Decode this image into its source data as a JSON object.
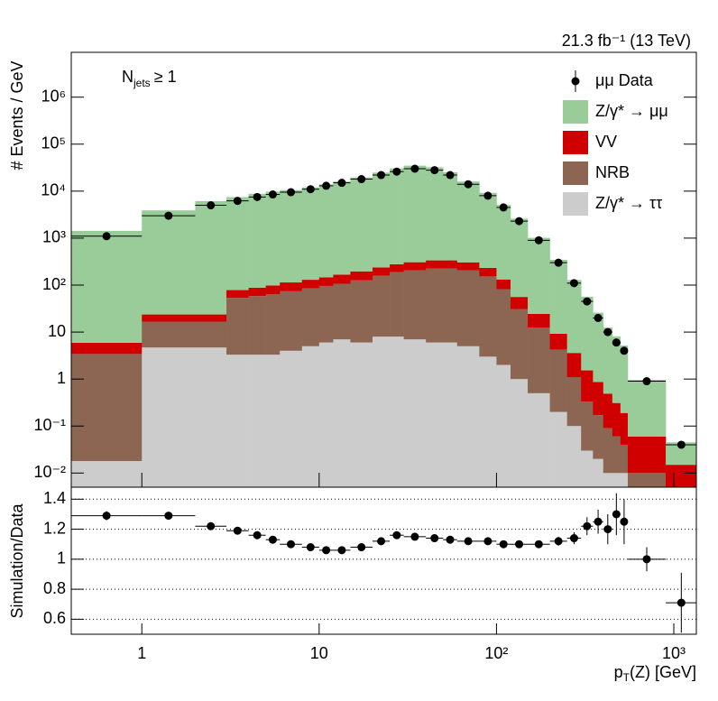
{
  "chart_data": {
    "type": "stacked_histogram_ratio",
    "lumi": "21.3 fb⁻¹ (13 TeV)",
    "annotation": {
      "main": "N",
      "sub": "jets",
      "rest": "≥ 1"
    },
    "y_label": "# Events / GeV",
    "ratio_label": "Simulation/Data",
    "x_label": {
      "main": "p",
      "sub": "T",
      "rest": "(Z) [GeV]"
    },
    "log_x": true,
    "log_y": true,
    "xlim": [
      0.4,
      1340
    ],
    "xticks": [
      1,
      10,
      {
        "value": 100,
        "label": "10²"
      },
      {
        "value": 1000,
        "label": "10³"
      }
    ],
    "ylim": [
      0.005,
      9000000
    ],
    "yticks": [
      {
        "value": 0.01,
        "label": "10⁻²"
      },
      {
        "value": 0.1,
        "label": "10⁻¹"
      },
      1,
      10,
      {
        "value": 100,
        "label": "10²"
      },
      {
        "value": 1000,
        "label": "10³"
      },
      {
        "value": 10000,
        "label": "10⁴"
      },
      {
        "value": 100000,
        "label": "10⁵"
      },
      {
        "value": 1000000,
        "label": "10⁶"
      }
    ],
    "ratio_ylim": [
      0.5,
      1.48
    ],
    "ratio_yticks": [
      0.6,
      0.8,
      1,
      1.2,
      1.4
    ],
    "ratio_grid": true,
    "legend": "top-right",
    "bins": [
      0.4,
      1,
      2,
      3,
      4,
      5,
      6,
      8,
      10,
      12,
      15,
      20,
      25,
      30,
      40,
      50,
      60,
      80,
      100,
      120,
      150,
      200,
      250,
      300,
      350,
      400,
      450,
      500,
      550,
      900,
      1350
    ],
    "data": {
      "name": "μμ Data",
      "color": "#000000",
      "values": [
        1100,
        3000,
        5000,
        6200,
        7500,
        8500,
        9500,
        11000,
        13000,
        15000,
        18000,
        22000,
        26000,
        30000,
        28000,
        22000,
        14000,
        8000,
        4500,
        2300,
        900,
        300,
        110,
        45,
        20,
        10,
        6,
        4,
        0.9,
        0.04
      ]
    },
    "series": [
      {
        "name": "Z/γ* → μμ",
        "color": "#99cc99",
        "values": [
          1420,
          3870,
          6100,
          7380,
          8700,
          9600,
          10400,
          11900,
          13800,
          15900,
          19400,
          24600,
          30200,
          34500,
          31900,
          24900,
          15700,
          8960,
          4950,
          2530,
          990,
          336,
          125,
          55,
          25,
          12,
          7.8,
          5,
          0.9,
          0.03
        ]
      },
      {
        "name": "VV",
        "color": "#d10000",
        "values": [
          2.5,
          7,
          7,
          25,
          30,
          35,
          40,
          45,
          50,
          60,
          70,
          80,
          90,
          100,
          110,
          110,
          100,
          80,
          50,
          25,
          12,
          5,
          2.5,
          1.2,
          0.7,
          0.4,
          0.25,
          0.15,
          0.05,
          0.01
        ]
      },
      {
        "name": "NRB",
        "color": "#8c6653",
        "values": [
          3.4,
          12,
          12,
          50,
          55,
          60,
          70,
          80,
          90,
          100,
          120,
          150,
          180,
          200,
          220,
          220,
          200,
          150,
          80,
          30,
          12,
          4,
          1,
          0.3,
          0.15,
          0.08,
          0.05,
          0.03,
          0.005,
          0.002
        ]
      },
      {
        "name": "Z/γ* → ττ",
        "color": "#cccccc",
        "values": [
          0.018,
          4.7,
          4.7,
          3.3,
          3.3,
          3.3,
          4,
          5,
          6,
          7,
          6,
          8,
          8,
          7,
          6,
          6,
          5,
          3,
          2,
          1,
          0.5,
          0.2,
          0.1,
          0.03,
          0.02,
          0.01,
          0.01,
          0.01,
          0.005,
          0.003
        ]
      }
    ],
    "ratio": {
      "values": [
        1.29,
        1.29,
        1.22,
        1.19,
        1.16,
        1.13,
        1.1,
        1.08,
        1.06,
        1.06,
        1.08,
        1.12,
        1.16,
        1.15,
        1.14,
        1.13,
        1.12,
        1.12,
        1.1,
        1.1,
        1.1,
        1.12,
        1.14,
        1.22,
        1.25,
        1.2,
        1.3,
        1.25,
        1.0,
        0.71
      ],
      "errors": [
        0.03,
        0.02,
        0.01,
        0.01,
        0.01,
        0.01,
        0.01,
        0.01,
        0.01,
        0.01,
        0.01,
        0.01,
        0.01,
        0.01,
        0.01,
        0.01,
        0.01,
        0.01,
        0.01,
        0.01,
        0.02,
        0.03,
        0.04,
        0.06,
        0.08,
        0.1,
        0.14,
        0.15,
        0.08,
        0.2
      ]
    }
  }
}
